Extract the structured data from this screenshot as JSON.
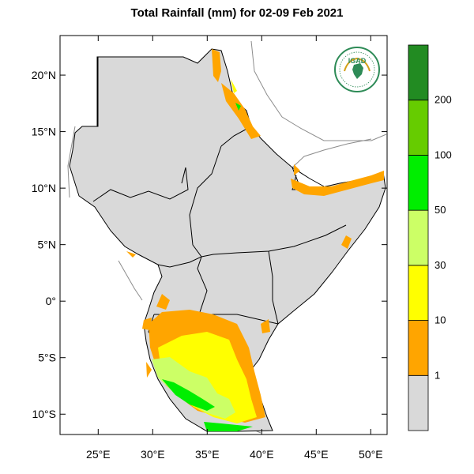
{
  "title": "Total Rainfall (mm) for 02-09 Feb 2021",
  "logo_text": "IGAD",
  "colors": {
    "land": "#d9d9d9",
    "background": "#ffffff",
    "border": "#000000",
    "outside_border": "#8c8c8c"
  },
  "map": {
    "lon_range": [
      21.5,
      51.5
    ],
    "lat_range": [
      -11.8,
      23.5
    ],
    "x_ticks": [
      {
        "lon": 25,
        "label": "25°E"
      },
      {
        "lon": 30,
        "label": "30°E"
      },
      {
        "lon": 35,
        "label": "35°E"
      },
      {
        "lon": 40,
        "label": "40°E"
      },
      {
        "lon": 45,
        "label": "45°E"
      },
      {
        "lon": 50,
        "label": "50°E"
      }
    ],
    "y_ticks": [
      {
        "lat": 20,
        "label": "20°N"
      },
      {
        "lat": 15,
        "label": "15°N"
      },
      {
        "lat": 10,
        "label": "10°N"
      },
      {
        "lat": 5,
        "label": "5°N"
      },
      {
        "lat": 0,
        "label": "0°"
      },
      {
        "lat": -5,
        "label": "5°S"
      },
      {
        "lat": -10,
        "label": "10°S"
      }
    ]
  },
  "legend": {
    "bins": [
      {
        "color": "#d9d9d9",
        "upper_label": "1"
      },
      {
        "color": "#ffa500",
        "upper_label": "10"
      },
      {
        "color": "#ffff00",
        "upper_label": "30"
      },
      {
        "color": "#ccff66",
        "upper_label": "50"
      },
      {
        "color": "#00ee00",
        "upper_label": "100"
      },
      {
        "color": "#66cc00",
        "upper_label": "200"
      },
      {
        "color": "#228b22",
        "upper_label": ""
      }
    ]
  }
}
